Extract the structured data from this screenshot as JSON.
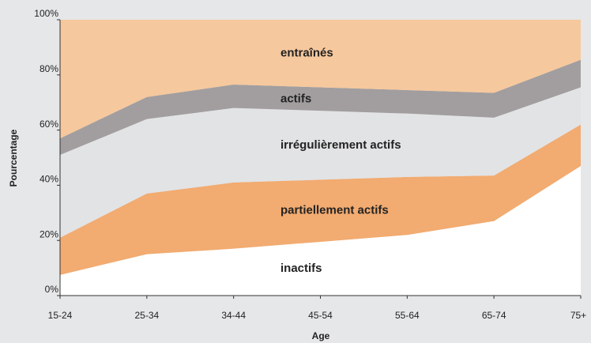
{
  "chart_data": {
    "type": "stacked_area",
    "x_label": "Age",
    "y_label": "Pourcentage",
    "categories": [
      "15-24",
      "25-34",
      "34-44",
      "45-54",
      "55-64",
      "65-74",
      "75+"
    ],
    "series": [
      {
        "name": "inactifs",
        "color": "#ffffff",
        "values": [
          7.5,
          15,
          17,
          19.5,
          22,
          27,
          47
        ]
      },
      {
        "name": "partiellement actifs",
        "color": "#f2ab70",
        "values": [
          13.5,
          22,
          24,
          22.5,
          21,
          16.5,
          15
        ]
      },
      {
        "name": "irrégulièrement actifs",
        "color": "#e2e3e5",
        "values": [
          30,
          27,
          27,
          25,
          23,
          21,
          13.5
        ]
      },
      {
        "name": "actifs",
        "color": "#a29e9f",
        "values": [
          6,
          8,
          8.5,
          8.5,
          8.5,
          9,
          10
        ]
      },
      {
        "name": "entraînés",
        "color": "#f6c89d",
        "values": [
          43,
          28,
          23.5,
          24.5,
          25.5,
          26.5,
          14.5
        ]
      }
    ],
    "ylim": [
      0,
      100
    ],
    "yticks": [
      {
        "value": 0,
        "label": "0%"
      },
      {
        "value": 20,
        "label": "20%"
      },
      {
        "value": 40,
        "label": "40%"
      },
      {
        "value": 60,
        "label": "60%"
      },
      {
        "value": 80,
        "label": "80%"
      },
      {
        "value": 100,
        "label": "100%"
      }
    ]
  }
}
